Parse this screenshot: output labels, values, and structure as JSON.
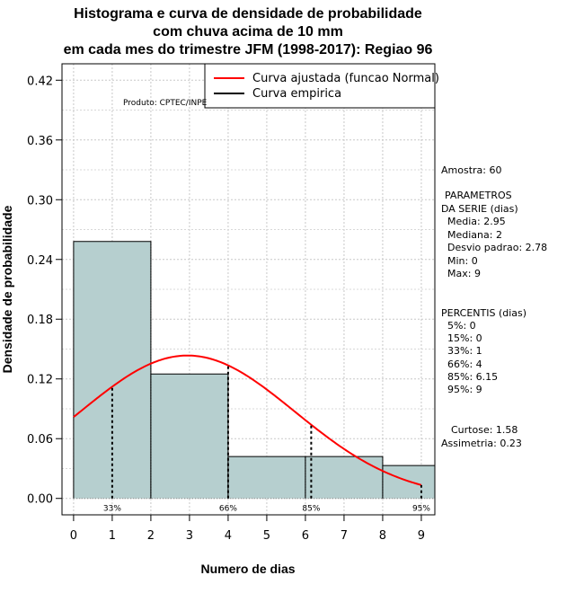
{
  "chart_data": {
    "type": "bar",
    "title_lines": [
      "Histograma e curva de densidade de probabilidade",
      "com chuva acima de 10 mm",
      "em cada mes do trimestre JFM (1998-2017): Regiao 96"
    ],
    "xlabel": "Numero de dias",
    "ylabel": "Densidade de probabilidade",
    "xlim": [
      -0.3,
      9.35
    ],
    "ylim": [
      -0.0165,
      0.4365
    ],
    "xticks": [
      "0",
      "1",
      "2",
      "3",
      "4",
      "5",
      "6",
      "7",
      "8",
      "9"
    ],
    "yticks": [
      "0.00",
      "0.06",
      "0.12",
      "0.18",
      "0.24",
      "0.30",
      "0.36",
      "0.42"
    ],
    "grid": true,
    "bins": [
      {
        "start": 0,
        "end": 2,
        "density": 0.258
      },
      {
        "start": 2,
        "end": 4,
        "density": 0.125
      },
      {
        "start": 4,
        "end": 6,
        "density": 0.042
      },
      {
        "start": 6,
        "end": 8,
        "density": 0.042
      },
      {
        "start": 8,
        "end": 10,
        "density": 0.033
      }
    ],
    "fitted_curve": {
      "name": "Curva ajustada (funcao Normal)",
      "color": "#ff0000",
      "mean": 2.95,
      "sd": 2.78,
      "x_range": [
        0,
        9
      ]
    },
    "empirical_curve": {
      "name": "Curva empirica",
      "color": "#000000"
    },
    "percentile_markers": [
      {
        "x": 1,
        "label": "33%"
      },
      {
        "x": 4,
        "label": "66%"
      },
      {
        "x": 6.15,
        "label": "85%"
      },
      {
        "x": 9,
        "label": "95%"
      }
    ],
    "annotation": "Produto: CPTEC/INPE",
    "bar_color": "#b6cfcf",
    "legend_position": "top-right"
  },
  "stats": {
    "amostra": "Amostra: 60",
    "param_title_1": "PARAMETROS",
    "param_title_2": "DA SERIE (dias)",
    "media": "Media: 2.95",
    "mediana": "Mediana: 2",
    "desvio": "Desvio padrao: 2.78",
    "min": "Min: 0",
    "max": "Max: 9",
    "perc_title": "PERCENTIS (dias)",
    "p5": "5%: 0",
    "p15": "15%: 0",
    "p33": "33%: 1",
    "p66": "66%: 4",
    "p85": "85%: 6.15",
    "p95": "95%: 9",
    "curtose": "Curtose: 1.58",
    "assimetria": "Assimetria: 0.23"
  }
}
